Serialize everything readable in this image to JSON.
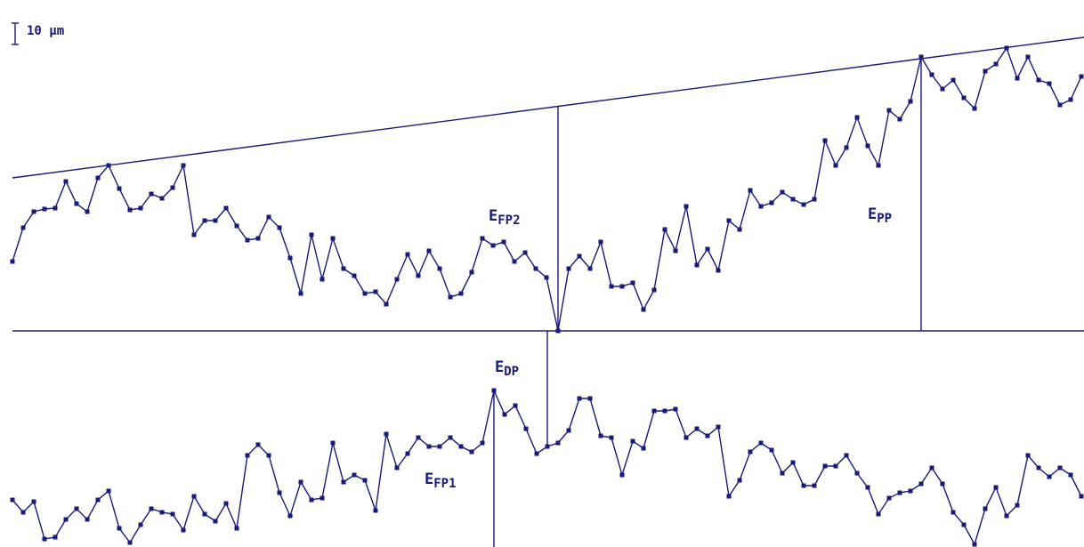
{
  "scale_bar": {
    "label": "10 µm"
  },
  "labels": {
    "efp2": {
      "main": "E",
      "sub": "FP2"
    },
    "epp": {
      "main": "E",
      "sub": "PP"
    },
    "edp": {
      "main": "E",
      "sub": "DP"
    },
    "efp1": {
      "main": "E",
      "sub": "FP1"
    }
  },
  "colors": {
    "ink": "#1a1a78",
    "background": "#ffffff"
  }
}
